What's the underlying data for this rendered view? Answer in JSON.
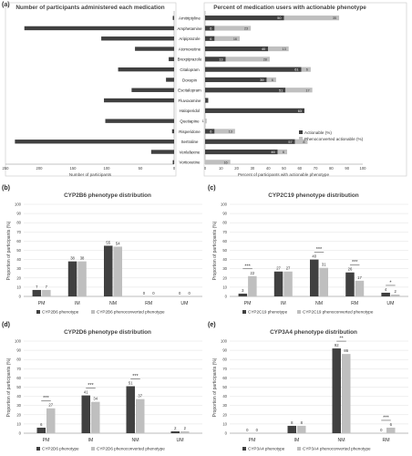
{
  "panel_labels": [
    "(a)",
    "(b)",
    "(c)",
    "(d)",
    "(e)"
  ],
  "colors": {
    "dark": "#404040",
    "light": "#bfbfbf",
    "axis": "#808080",
    "grid": "#e0e0e0"
  },
  "chart_data": [
    {
      "type": "bar",
      "orientation": "horizontal",
      "title": "Number of participants administered each medication",
      "xlabel": "Number of participants",
      "ticks": [
        "250",
        "200",
        "150",
        "100",
        "50",
        "0"
      ],
      "xlim": [
        0,
        250
      ],
      "categories": [
        "Amitriptyline",
        "Amphetamine",
        "Aripiprazole",
        "Atomoxetine",
        "Brexpiprazole",
        "Citalopram",
        "Doxepin",
        "Escitalopram",
        "Fluvoxamine",
        "Haloperidol",
        "Quetiapine",
        "Risperidone",
        "Sertraline",
        "Venlafaxine",
        "Vortioxetine"
      ],
      "values": [
        2,
        222,
        108,
        58,
        8,
        83,
        12,
        63,
        104,
        0,
        102,
        3,
        236,
        34,
        2
      ]
    },
    {
      "type": "bar",
      "orientation": "horizontal-stacked",
      "title": "Percent of medication users with actionable phenotype",
      "xlabel": "Percent of participants with actionable phenotype",
      "ticks": [
        "0",
        "10",
        "20",
        "30",
        "40",
        "50",
        "60",
        "70",
        "80",
        "90",
        "100"
      ],
      "xlim": [
        0,
        100
      ],
      "categories": [
        "Amitriptyline",
        "Amphetamine",
        "Aripiprazole",
        "Atomoxetine",
        "Brexpiprazole",
        "Citalopram",
        "Doxepin",
        "Escitalopram",
        "Fluvoxamine",
        "Haloperidol",
        "Quetiapine",
        "Risperidone",
        "Sertraline",
        "Venlafaxine",
        "Vortioxetine"
      ],
      "legend_position": "right",
      "series": [
        {
          "name": "Actionable (%)",
          "values": [
            50,
            6,
            6,
            40,
            13,
            61,
            39,
            51,
            2,
            63,
            0,
            6,
            57,
            46,
            0
          ],
          "labels": [
            "50",
            "6",
            "6",
            "40",
            "13",
            "61",
            "39",
            "51",
            "2",
            "63",
            "",
            "6",
            "57",
            "46",
            ""
          ]
        },
        {
          "name": "Phenoconverted actionable (%)",
          "values": [
            35,
            23,
            16,
            13,
            28,
            6,
            6,
            17,
            0,
            0,
            1,
            13,
            8,
            6,
            16
          ],
          "labels": [
            "35",
            "23",
            "16",
            "13",
            "28",
            "6",
            "6",
            "17",
            "",
            "",
            "1",
            "13",
            "8",
            "6",
            "16"
          ]
        }
      ]
    },
    {
      "type": "bar",
      "title": "CYP2B6 phenotype distribution",
      "ylabel": "Proportion of participants (%)",
      "ylim": [
        0,
        100
      ],
      "yticks": [
        "0",
        "10",
        "20",
        "30",
        "40",
        "50",
        "60",
        "70",
        "80",
        "90",
        "100"
      ],
      "categories": [
        "PM",
        "IM",
        "NM",
        "RM",
        "UM"
      ],
      "series": [
        {
          "name": "CYP2B6 phenotype",
          "values": [
            7,
            38,
            55,
            0,
            0
          ]
        },
        {
          "name": "CYP2B6 phenoconverted phenotype",
          "values": [
            7,
            38,
            54,
            0,
            0
          ]
        }
      ],
      "significance": []
    },
    {
      "type": "bar",
      "title": "CYP2C19 phenotype distribution",
      "ylabel": "Proportion of participants (%)",
      "ylim": [
        0,
        100
      ],
      "yticks": [
        "0",
        "10",
        "20",
        "30",
        "40",
        "50",
        "60",
        "70",
        "80",
        "90",
        "100"
      ],
      "categories": [
        "PM",
        "IM",
        "NM",
        "RM",
        "UM"
      ],
      "series": [
        {
          "name": "CYP2C19 phenotype",
          "values": [
            3,
            27,
            40,
            26,
            4
          ]
        },
        {
          "name": "CYP2C19 phenoconverted phenotype",
          "values": [
            22,
            27,
            31,
            17,
            2
          ]
        }
      ],
      "significance": [
        "***",
        "",
        "***",
        "***",
        "*"
      ]
    },
    {
      "type": "bar",
      "title": "CYP2D6 phenotype distribution",
      "ylabel": "Proportion of participants (%)",
      "ylim": [
        0,
        100
      ],
      "yticks": [
        "0",
        "10",
        "20",
        "30",
        "40",
        "50",
        "60",
        "70",
        "80",
        "90",
        "100"
      ],
      "categories": [
        "PM",
        "IM",
        "NM",
        "UM"
      ],
      "series": [
        {
          "name": "CYP2D6 phenotype",
          "values": [
            6,
            41,
            51,
            2
          ]
        },
        {
          "name": "CYP2D6 phenoconverted phenotype",
          "values": [
            27,
            34,
            37,
            2
          ]
        }
      ],
      "significance": [
        "***",
        "***",
        "***",
        ""
      ]
    },
    {
      "type": "bar",
      "title": "CYP3A4 phenotype distribution",
      "ylabel": "Proportion of participants (%)",
      "ylim": [
        0,
        100
      ],
      "yticks": [
        "0",
        "10",
        "20",
        "30",
        "40",
        "50",
        "60",
        "70",
        "80",
        "90",
        "100"
      ],
      "categories": [
        "PM",
        "IM",
        "NM",
        "RM"
      ],
      "series": [
        {
          "name": "CYP3A4 phenotype",
          "values": [
            0,
            8,
            92,
            0
          ]
        },
        {
          "name": "CYP3A4 phenoconverted phenotype",
          "values": [
            0,
            8,
            86,
            6
          ]
        }
      ],
      "significance": [
        "",
        "",
        "**",
        "***"
      ]
    }
  ]
}
